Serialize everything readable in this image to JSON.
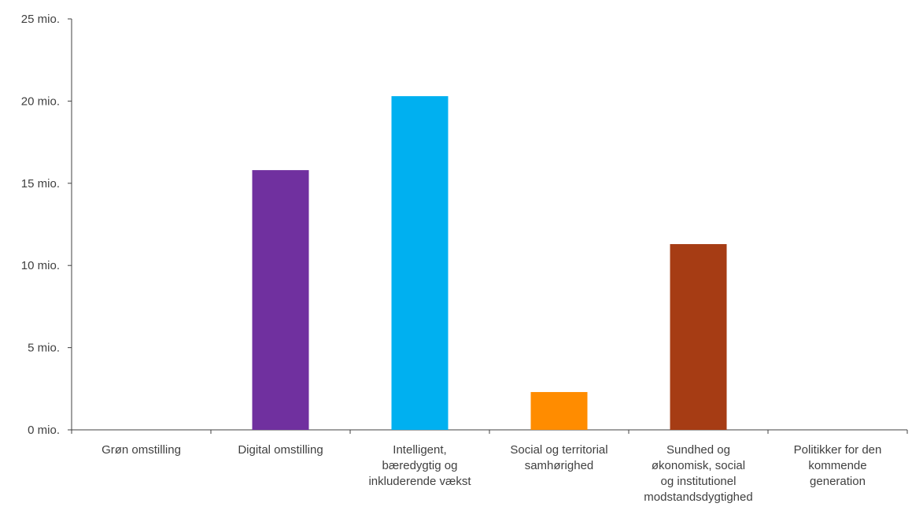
{
  "chart_data": {
    "type": "bar",
    "title": "",
    "xlabel": "",
    "ylabel": "",
    "ylim": [
      0,
      25000000
    ],
    "y_ticks": [
      {
        "value": 0,
        "label": "0 mio."
      },
      {
        "value": 5000000,
        "label": "5 mio."
      },
      {
        "value": 10000000,
        "label": "10 mio."
      },
      {
        "value": 15000000,
        "label": "15 mio."
      },
      {
        "value": 20000000,
        "label": "20 mio."
      },
      {
        "value": 25000000,
        "label": "25 mio."
      }
    ],
    "grid": false,
    "legend": "none",
    "categories": [
      {
        "lines": [
          "Grøn omstilling"
        ]
      },
      {
        "lines": [
          "Digital omstilling"
        ]
      },
      {
        "lines": [
          "Intelligent,",
          "bæredygtig og",
          "inkluderende vækst"
        ]
      },
      {
        "lines": [
          "Social og territorial",
          "samhørighed"
        ]
      },
      {
        "lines": [
          "Sundhed og",
          "økonomisk, social",
          "og institutionel",
          "modstandsdygtighed"
        ]
      },
      {
        "lines": [
          "Politikker for den",
          "kommende",
          "generation"
        ]
      }
    ],
    "values": [
      0,
      15800000,
      20300000,
      2300000,
      11300000,
      0
    ],
    "colors": [
      "#2e9b4b",
      "#70309f",
      "#00b0f0",
      "#ff8c00",
      "#a63c14",
      "#d0d0d0"
    ]
  }
}
